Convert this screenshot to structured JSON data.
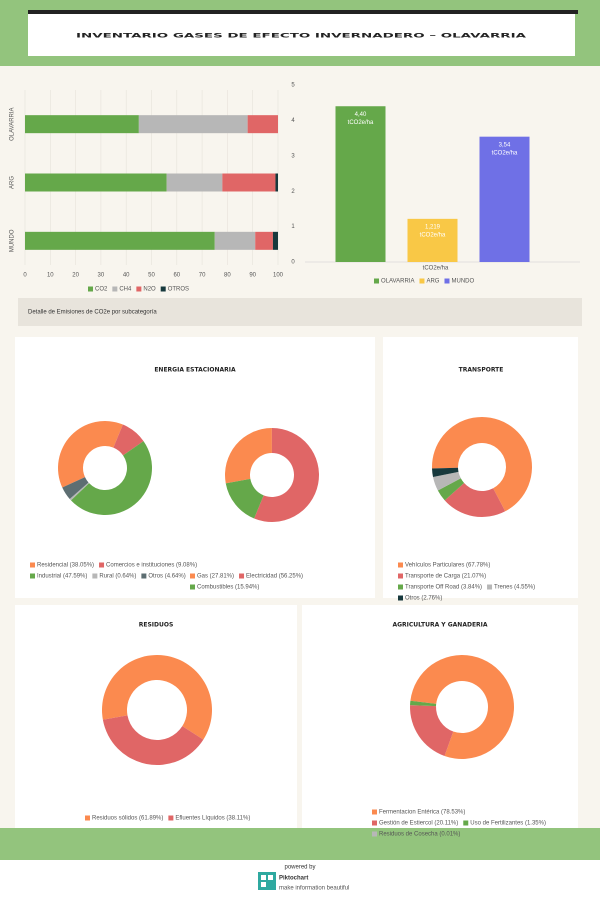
{
  "header": {
    "title": "INVENTARIO GASES DE EFECTO INVERNADERO – OLAVARRIA"
  },
  "section_title": "Detalle de Emisiones de CO2e por subcategoría",
  "footer": {
    "powered": "powered by",
    "brand": "Piktochart",
    "tagline": "make information beautiful"
  },
  "chart_data": [
    {
      "type": "hbar",
      "stacked": true,
      "categories": [
        "OLAVARRIA",
        "ARG",
        "MUNDO"
      ],
      "series": [
        {
          "name": "CO2",
          "color": "#65a84a",
          "values": [
            45,
            56,
            75
          ]
        },
        {
          "name": "CH4",
          "color": "#b7b7b7",
          "values": [
            43,
            22,
            16
          ]
        },
        {
          "name": "N2O",
          "color": "#e06666",
          "values": [
            12,
            21,
            7
          ]
        },
        {
          "name": "OTROS",
          "color": "#17393d",
          "values": [
            0,
            1,
            2
          ]
        }
      ],
      "xlim": [
        0,
        100
      ],
      "xticks": [
        0,
        10,
        20,
        30,
        40,
        50,
        60,
        70,
        80,
        90,
        100
      ],
      "grid": true,
      "legend": "bottom"
    },
    {
      "type": "bar",
      "categories": [
        "tCO2e/ha"
      ],
      "series": [
        {
          "name": "OLAVARRIA",
          "color": "#65a84a",
          "values": [
            4.4
          ],
          "value_labels": [
            "4,40"
          ]
        },
        {
          "name": "ARG",
          "color": "#f9c846",
          "values": [
            1.219
          ],
          "value_labels": [
            "1,219"
          ]
        },
        {
          "name": "MUNDO",
          "color": "#6f70e6",
          "values": [
            3.54
          ],
          "value_labels": [
            "3,54"
          ]
        }
      ],
      "ylim": [
        0,
        5
      ],
      "yticks": [
        0,
        1,
        2,
        3,
        4,
        5
      ],
      "grid": false,
      "legend": "bottom"
    },
    {
      "type": "pie",
      "title": "ENERGIA ESTACIONARIA",
      "categories": [
        "Residencial (38.05%)",
        "Comercios e instituciones (9.08%)",
        "Industrial (47.59%)",
        "Rural (0.64%)",
        "Otros (4.64%)"
      ],
      "values": [
        38.05,
        9.08,
        47.59,
        0.64,
        4.64
      ],
      "colors": [
        "#fb8a4f",
        "#e06666",
        "#65a84a",
        "#b7b7b7",
        "#5d6e72"
      ]
    },
    {
      "type": "pie",
      "categories": [
        "Gas (27.81%)",
        "Electricidad (56.25%)",
        "Combustibles (15.94%)"
      ],
      "values": [
        27.81,
        56.25,
        15.94
      ],
      "colors": [
        "#fb8a4f",
        "#e06666",
        "#65a84a"
      ]
    },
    {
      "type": "pie",
      "title": "TRANSPORTE",
      "categories": [
        "Vehículos Particulares (67.78%)",
        "Transporte de Carga (21.07%)",
        "Transporte Off Road (3.84%)",
        "Trenes (4.55%)",
        "Otros (2.76%)"
      ],
      "values": [
        67.78,
        21.07,
        3.84,
        4.55,
        2.76
      ],
      "colors": [
        "#fb8a4f",
        "#e06666",
        "#65a84a",
        "#b7b7b7",
        "#17393d"
      ]
    },
    {
      "type": "pie",
      "title": "RESIDUOS",
      "categories": [
        "Residuos sólidos (61.89%)",
        "Efluentes Líquidos (38.11%)"
      ],
      "values": [
        61.89,
        38.11
      ],
      "colors": [
        "#fb8a4f",
        "#e06666"
      ]
    },
    {
      "type": "pie",
      "title": "AGRICULTURA Y GANADERIA",
      "categories": [
        "Fermentacion Entérica (78.53%)",
        "Gestión de Estiercol (20.11%)",
        "Uso de Fertilizantes (1.35%)",
        "Residuos de Cosecha (0.01%)"
      ],
      "values": [
        78.53,
        20.11,
        1.35,
        0.01
      ],
      "colors": [
        "#fb8a4f",
        "#e06666",
        "#65a84a",
        "#b7b7b7"
      ]
    }
  ]
}
